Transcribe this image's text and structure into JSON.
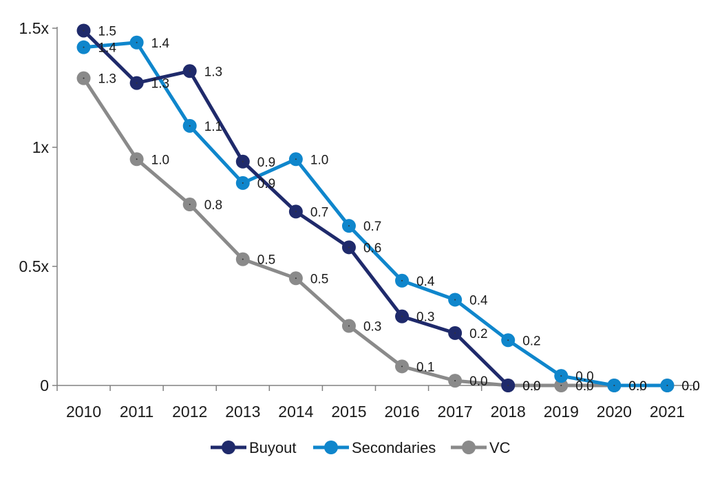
{
  "chart_data": {
    "type": "line",
    "categories": [
      "2010",
      "2011",
      "2012",
      "2013",
      "2014",
      "2015",
      "2016",
      "2017",
      "2018",
      "2019",
      "2020",
      "2021"
    ],
    "y_ticks": [
      {
        "value": 0,
        "label": "0"
      },
      {
        "value": 0.5,
        "label": "0.5x"
      },
      {
        "value": 1,
        "label": "1x"
      },
      {
        "value": 1.5,
        "label": "1.5x"
      }
    ],
    "ylim": [
      0,
      1.5
    ],
    "grid": false,
    "legend_position": "bottom",
    "series": [
      {
        "name": "Buyout",
        "color": "#1f2a6b",
        "values": [
          1.49,
          1.27,
          1.32,
          0.94,
          0.73,
          0.58,
          0.29,
          0.22,
          0.0,
          null,
          null,
          null
        ],
        "labels": [
          "1.5",
          "1.3",
          "1.3",
          "0.9",
          "0.7",
          "0.6",
          "0.3",
          "0.2",
          "0.0",
          null,
          null,
          null
        ]
      },
      {
        "name": "Secondaries",
        "color": "#0f86cc",
        "values": [
          1.42,
          1.44,
          1.09,
          0.85,
          0.95,
          0.67,
          0.44,
          0.36,
          0.19,
          0.04,
          0.0,
          0.0
        ],
        "labels": [
          "1.4",
          "1.4",
          "1.1",
          "0.9",
          "1.0",
          "0.7",
          "0.4",
          "0.4",
          "0.2",
          "0.0",
          "0.0",
          "0.0"
        ]
      },
      {
        "name": "VC",
        "color": "#8a8a8a",
        "values": [
          1.29,
          0.95,
          0.76,
          0.53,
          0.45,
          0.25,
          0.08,
          0.02,
          0.0,
          0.0,
          0.0,
          0.0
        ],
        "labels": [
          "1.3",
          "1.0",
          "0.8",
          "0.5",
          "0.5",
          "0.3",
          "0.1",
          "0.0",
          "0.0",
          "0.0",
          "0.0",
          "0.0"
        ]
      }
    ]
  }
}
